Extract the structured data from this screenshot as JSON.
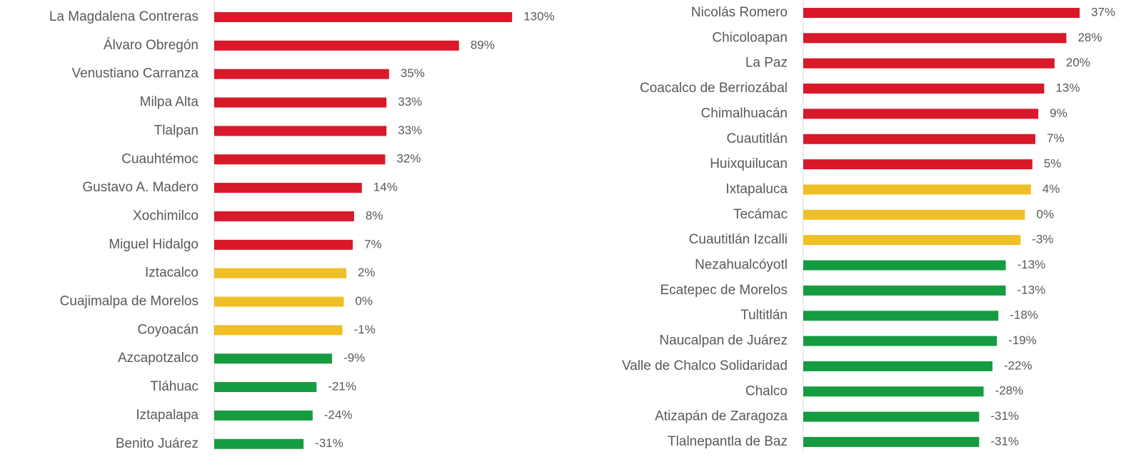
{
  "chart_data": [
    {
      "type": "bar",
      "orientation": "horizontal",
      "categories": [
        "La Magdalena Contreras",
        "Álvaro Obregón",
        "Venustiano Carranza",
        "Milpa Alta",
        "Tlalpan",
        "Cuauhtémoc",
        "Gustavo A. Madero",
        "Xochimilco",
        "Miguel Hidalgo",
        "Iztacalco",
        "Cuajimalpa de Morelos",
        "Coyoacán",
        "Azcapotzalco",
        "Tláhuac",
        "Iztapalapa",
        "Benito Juárez"
      ],
      "values": [
        130,
        89,
        35,
        33,
        33,
        32,
        14,
        8,
        7,
        2,
        0,
        -1,
        -9,
        -21,
        -24,
        -31
      ],
      "value_labels": [
        "130%",
        "89%",
        "35%",
        "33%",
        "33%",
        "32%",
        "14%",
        "8%",
        "7%",
        "2%",
        "0%",
        "-1%",
        "-9%",
        "-21%",
        "-24%",
        "-31%"
      ],
      "colors": [
        "#d9182a",
        "#d9182a",
        "#d9182a",
        "#d9182a",
        "#d9182a",
        "#d9182a",
        "#d9182a",
        "#d9182a",
        "#d9182a",
        "#f0be26",
        "#f0be26",
        "#f0be26",
        "#169c40",
        "#169c40",
        "#169c40",
        "#169c40"
      ],
      "xlim": [
        -100,
        150
      ]
    },
    {
      "type": "bar",
      "orientation": "horizontal",
      "categories": [
        "Nicolás Romero",
        "Chicoloapan",
        "La Paz",
        "Coacalco de Berriozábal",
        "Chimalhuacán",
        "Cuautitlán",
        "Huixquilucan",
        "Ixtapaluca",
        "Tecámac",
        "Cuautitlán Izcalli",
        "Nezahualcóyotl",
        "Ecatepec de Morelos",
        "Tultitlán",
        "Naucalpan de Juárez",
        "Valle de Chalco Solidaridad",
        "Chalco",
        "Atizapán de Zaragoza",
        "Tlalnepantla de Baz"
      ],
      "values": [
        37,
        28,
        20,
        13,
        9,
        7,
        5,
        4,
        0,
        -3,
        -13,
        -13,
        -18,
        -19,
        -22,
        -28,
        -31,
        -31
      ],
      "value_labels": [
        "37%",
        "28%",
        "20%",
        "13%",
        "9%",
        "7%",
        "5%",
        "4%",
        "0%",
        "-3%",
        "-13%",
        "-13%",
        "-18%",
        "-19%",
        "-22%",
        "-28%",
        "-31%",
        "-31%"
      ],
      "colors": [
        "#d9182a",
        "#d9182a",
        "#d9182a",
        "#d9182a",
        "#d9182a",
        "#d9182a",
        "#d9182a",
        "#f0be26",
        "#f0be26",
        "#f0be26",
        "#169c40",
        "#169c40",
        "#169c40",
        "#169c40",
        "#169c40",
        "#169c40",
        "#169c40",
        "#169c40"
      ],
      "xlim": [
        -150,
        50
      ]
    }
  ]
}
